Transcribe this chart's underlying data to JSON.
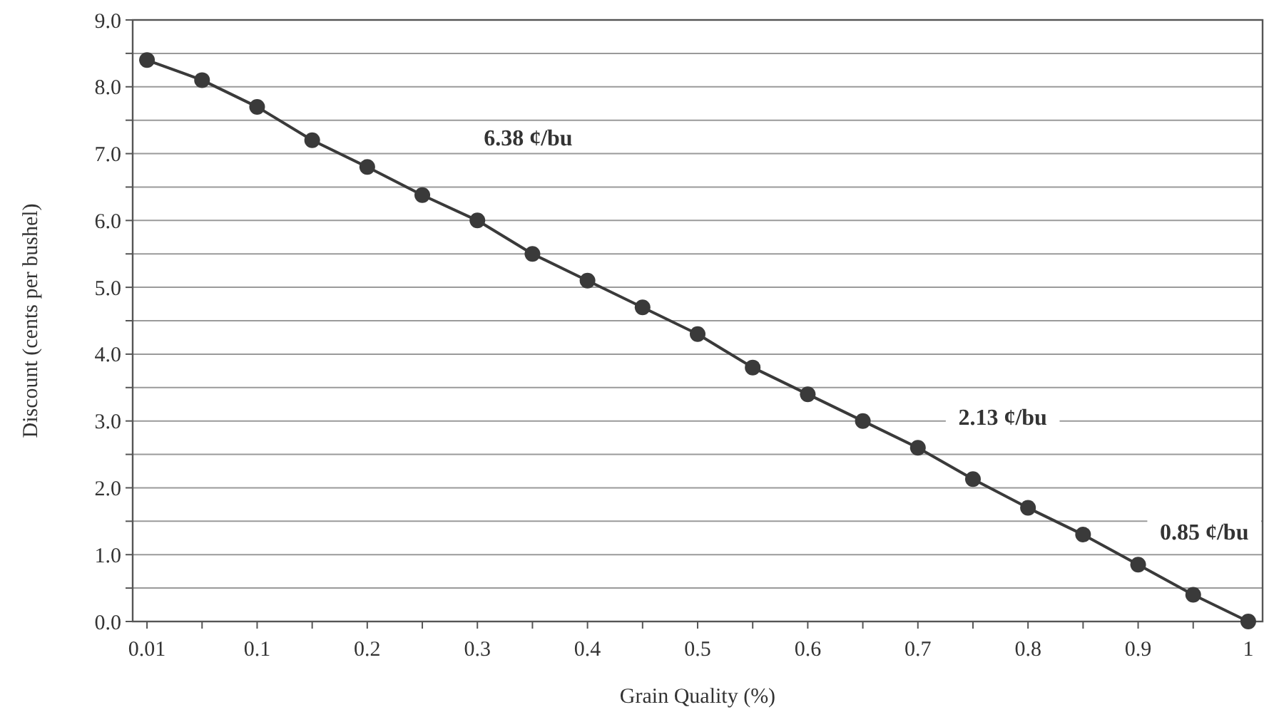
{
  "chart_data": {
    "type": "line",
    "xlabel": "Grain Quality (%)",
    "ylabel": "Discount (cents per bushel)",
    "categories": [
      "0.01",
      null,
      "0.1",
      null,
      "0.2",
      null,
      "0.3",
      null,
      "0.4",
      null,
      "0.5",
      null,
      "0.6",
      null,
      "0.7",
      null,
      "0.8",
      null,
      "0.9",
      null,
      "1"
    ],
    "series": [
      {
        "color": "#3a3a3a",
        "values": [
          8.4,
          8.1,
          7.7,
          7.2,
          6.8,
          6.38,
          6.0,
          5.5,
          5.1,
          4.7,
          4.3,
          3.8,
          3.4,
          3.0,
          2.6,
          2.13,
          1.7,
          1.3,
          0.85,
          0.4,
          0.0
        ]
      }
    ],
    "ylim": [
      0,
      9
    ],
    "yticks": [
      {
        "value": 0,
        "label": "0.0"
      },
      {
        "value": 0.5,
        "label": null
      },
      {
        "value": 1,
        "label": "1.0"
      },
      {
        "value": 1.5,
        "label": null
      },
      {
        "value": 2,
        "label": "2.0"
      },
      {
        "value": 2.5,
        "label": null
      },
      {
        "value": 3,
        "label": "3.0"
      },
      {
        "value": 3.5,
        "label": null
      },
      {
        "value": 4,
        "label": "4.0"
      },
      {
        "value": 4.5,
        "label": null
      },
      {
        "value": 5,
        "label": "5.0"
      },
      {
        "value": 5.5,
        "label": null
      },
      {
        "value": 6,
        "label": "6.0"
      },
      {
        "value": 6.5,
        "label": null
      },
      {
        "value": 7,
        "label": "7.0"
      },
      {
        "value": 7.5,
        "label": null
      },
      {
        "value": 8,
        "label": "8.0"
      },
      {
        "value": 8.5,
        "label": null
      },
      {
        "value": 9,
        "label": "9.0"
      }
    ],
    "grid": "y",
    "marker": "circle",
    "line_style": "solid",
    "annotations": [
      "6.38 ¢/bu",
      "2.13 ¢/bu",
      "0.85 ¢/bu"
    ]
  }
}
